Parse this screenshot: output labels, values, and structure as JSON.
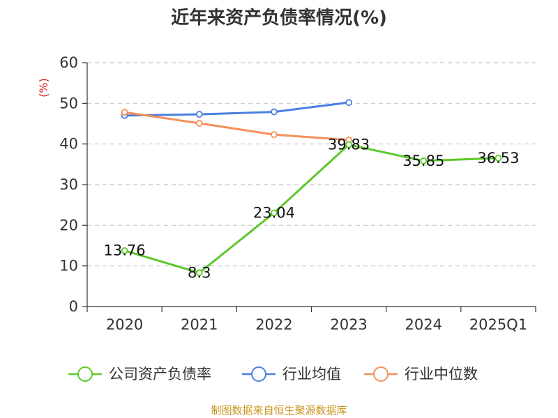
{
  "chart_data": {
    "type": "line",
    "title": "近年来资产负债率情况(%)",
    "ylabel": "(%)",
    "xlabel": "",
    "ylim": [
      0,
      60
    ],
    "yticks": [
      0,
      10,
      20,
      30,
      40,
      50,
      60
    ],
    "grid": true,
    "legend_position": "bottom",
    "categories": [
      "2020",
      "2021",
      "2022",
      "2023",
      "2024",
      "2025Q1"
    ],
    "series": [
      {
        "name": "公司资产负债率",
        "color": "#5cc82a",
        "values": [
          13.76,
          8.3,
          23.04,
          39.83,
          35.85,
          36.53
        ],
        "labels": [
          "13.76",
          "8.3",
          "23.04",
          "39.83",
          "35.85",
          "36.53"
        ]
      },
      {
        "name": "行业均值",
        "color": "#4a7fe0",
        "values": [
          47.0,
          47.3,
          47.9,
          50.2,
          null,
          null
        ]
      },
      {
        "name": "行业中位数",
        "color": "#f5905a",
        "values": [
          47.8,
          45.1,
          42.3,
          41.0,
          null,
          null
        ]
      }
    ],
    "source": "制图数据来自恒生聚源数据库"
  }
}
